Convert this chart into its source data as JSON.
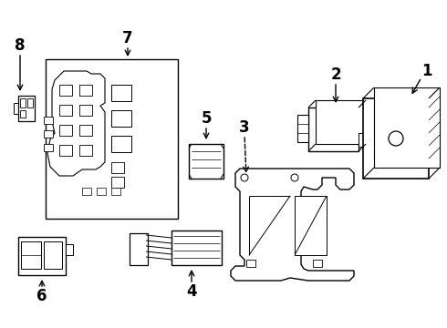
{
  "bg_color": "#ffffff",
  "line_color": "#000000",
  "fig_width": 4.9,
  "fig_height": 3.6,
  "dpi": 100,
  "label_fontsize": 12,
  "label_fontweight": "bold"
}
